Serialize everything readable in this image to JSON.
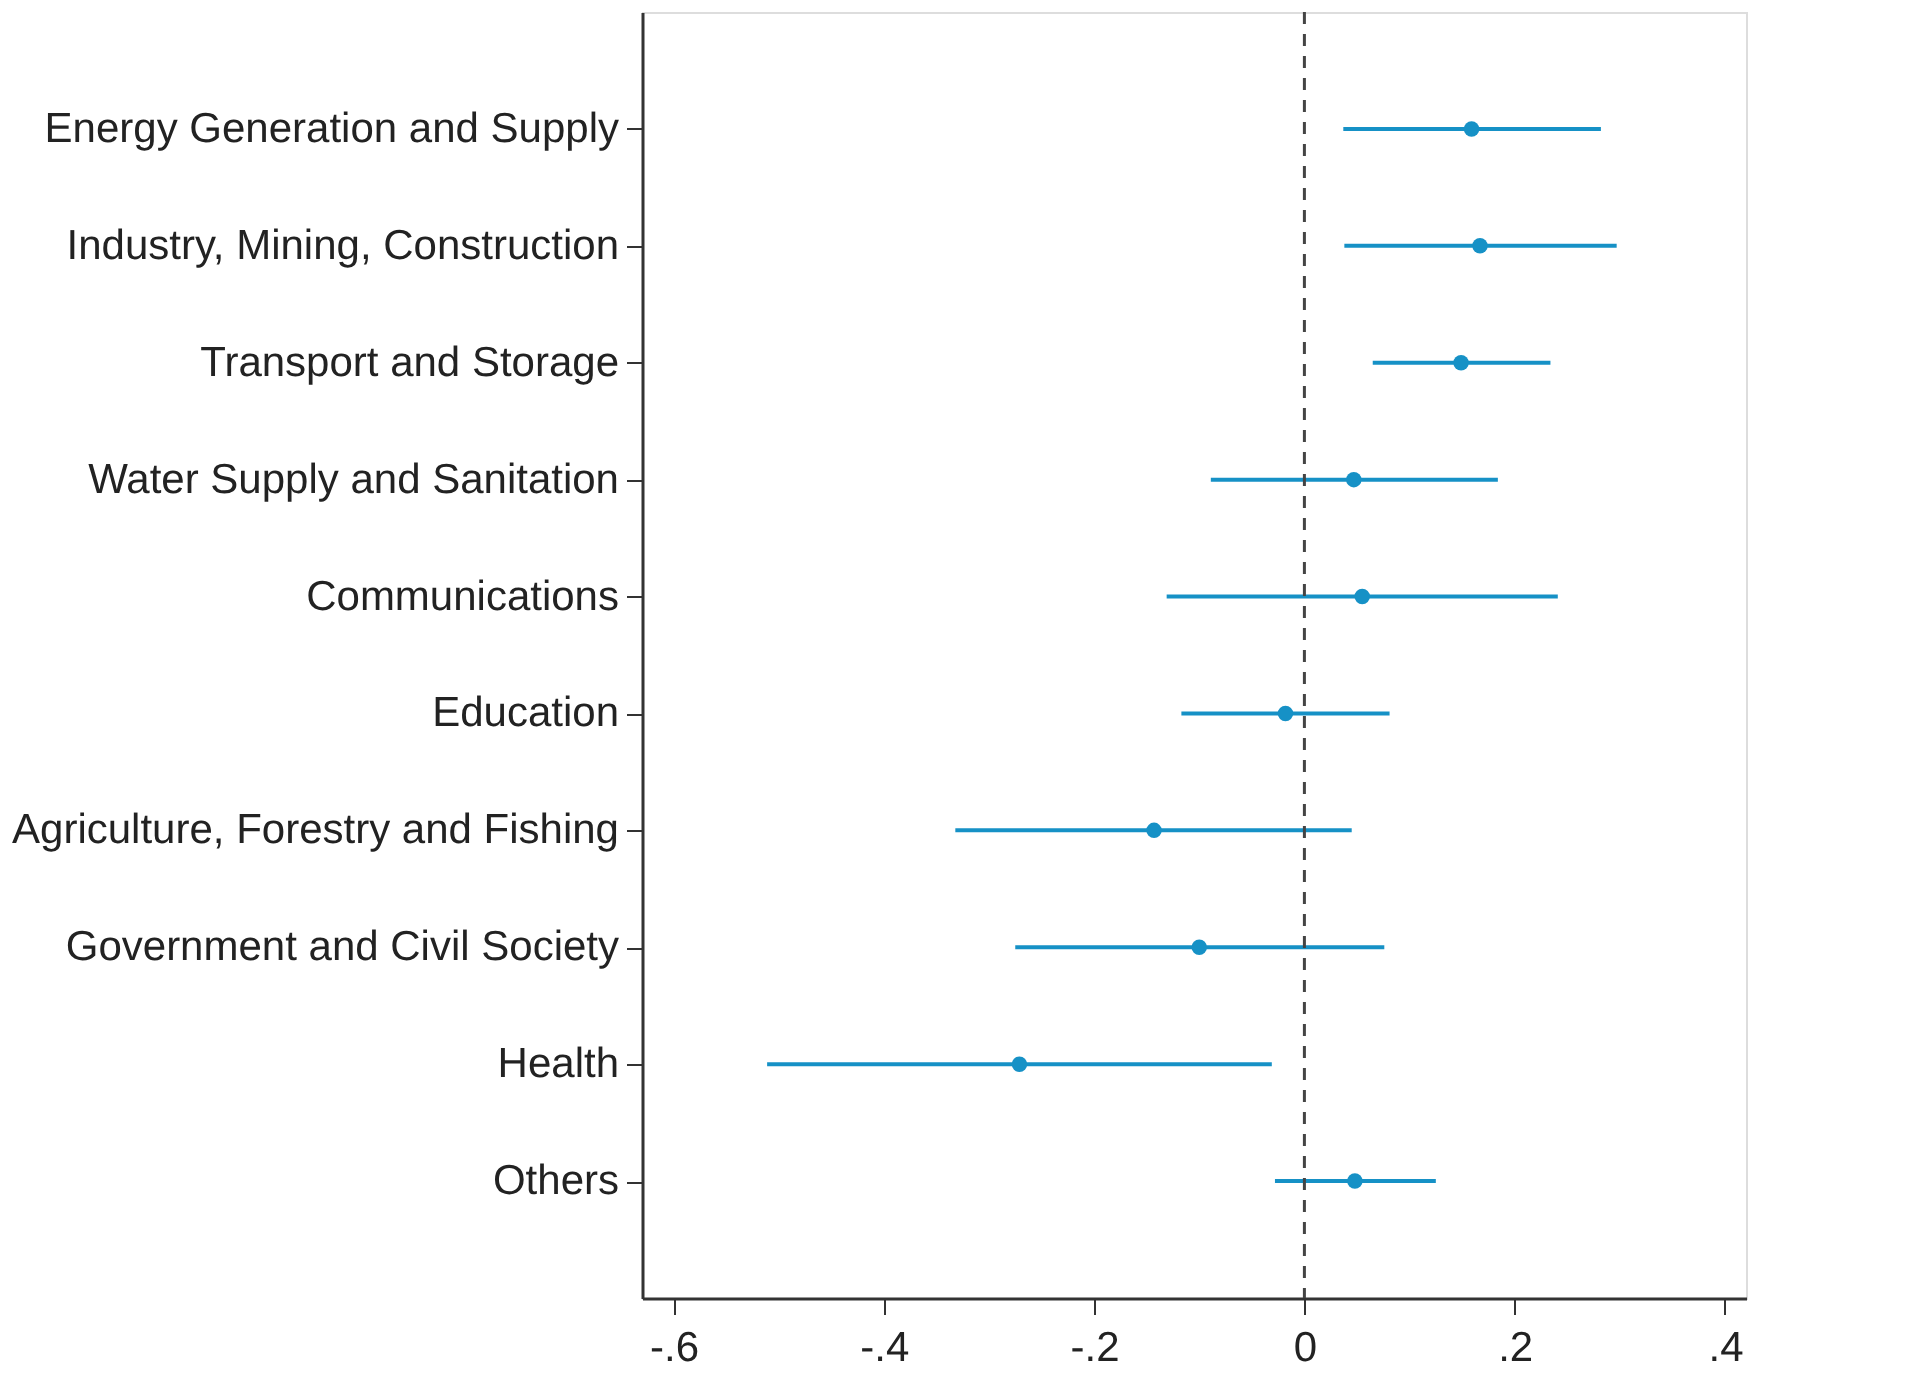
{
  "chart_data": {
    "type": "scatter",
    "orientation": "horizontal",
    "categories": [
      "Energy Generation and Supply",
      "Industry, Mining, Construction",
      "Transport and Storage",
      "Water Supply and Sanitation",
      "Communications",
      "Education",
      "Agriculture, Forestry and Fishing",
      "Government and Civil Society",
      "Health",
      "Others"
    ],
    "series": [
      {
        "color": "#1691c6",
        "values": [
          0.159,
          0.167,
          0.149,
          0.047,
          0.055,
          -0.018,
          -0.143,
          -0.1,
          -0.271,
          0.048
        ],
        "errors": [
          [
            0.037,
            0.282
          ],
          [
            0.038,
            0.297
          ],
          [
            0.065,
            0.234
          ],
          [
            -0.089,
            0.184
          ],
          [
            -0.131,
            0.241
          ],
          [
            -0.117,
            0.081
          ],
          [
            -0.332,
            0.045
          ],
          [
            -0.275,
            0.076
          ],
          [
            -0.511,
            -0.031
          ],
          [
            -0.028,
            0.125
          ]
        ]
      }
    ],
    "xlim": [
      -0.63,
      0.42
    ],
    "xticks": [
      {
        "value": -0.6,
        "label": "-.6"
      },
      {
        "value": -0.4,
        "label": "-.4"
      },
      {
        "value": -0.2,
        "label": "-.2"
      },
      0,
      {
        "value": 0.2,
        "label": ".2"
      },
      {
        "value": 0.4,
        "label": ".4"
      }
    ],
    "ref_lines": [
      {
        "axis": "x",
        "value": 0,
        "color": "#444444",
        "line_style": "dashed"
      }
    ],
    "marker": "circle",
    "grid": false
  }
}
